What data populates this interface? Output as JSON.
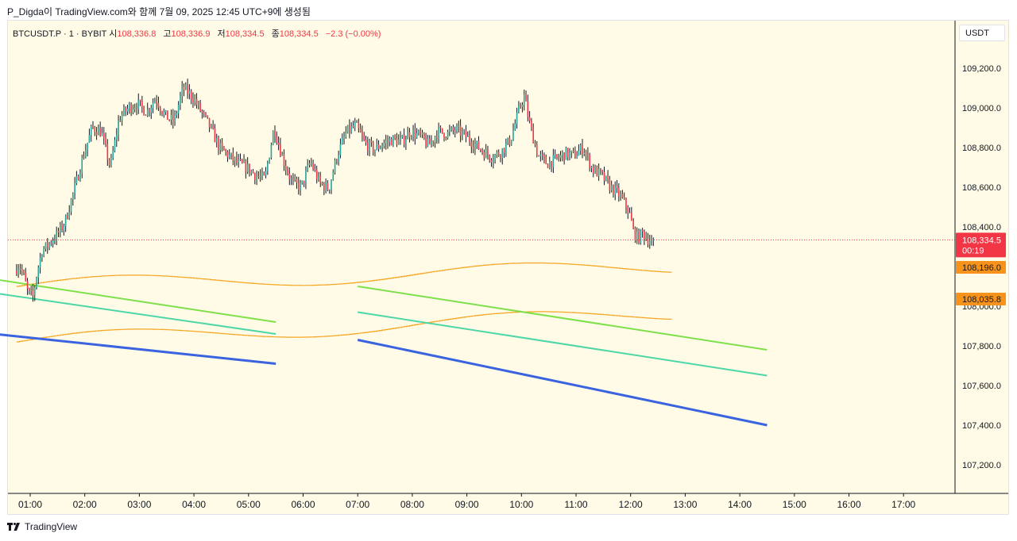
{
  "header": {
    "publish_info": "P_Digda이 TradingView.com와 함께 7월 09, 2025 12:45 UTC+9에 생성됨"
  },
  "symbol_bar": {
    "symbol": "BTCUSDT.P · 1 · BYBIT",
    "open_label": "시",
    "open_value": "108,336.8",
    "high_label": "고",
    "high_value": "108,336.9",
    "low_label": "저",
    "low_value": "108,334.5",
    "close_label": "종",
    "close_value": "108,334.5",
    "change": "−2.3 (−0.00%)"
  },
  "price_axis": {
    "currency": "USDT",
    "ticks": [
      "109,200.0",
      "109,000.0",
      "108,800.0",
      "108,600.0",
      "108,400.0",
      "108,000.0",
      "107,800.0",
      "107,600.0",
      "107,400.0",
      "107,200.0"
    ],
    "tick_values": [
      109200,
      109000,
      108800,
      108600,
      108400,
      108000,
      107800,
      107600,
      107400,
      107200
    ],
    "last_price_tag": "108,334.5",
    "countdown": "00:19",
    "upper_band_tag": "108,196.0",
    "lower_band_tag": "108,035.8"
  },
  "time_axis": {
    "labels": [
      "01:00",
      "02:00",
      "03:00",
      "04:00",
      "05:00",
      "06:00",
      "07:00",
      "08:00",
      "09:00",
      "10:00",
      "11:00",
      "12:00",
      "13:00",
      "14:00",
      "15:00",
      "16:00",
      "17:00"
    ]
  },
  "footer": {
    "brand": "TradingView"
  },
  "colors": {
    "background": "#fffbe6",
    "up": "#26a69a",
    "down": "#f23645",
    "wick": "#131722",
    "band": "#f5a623",
    "green_line": "#7ee04a",
    "teal_line": "#4dd6a6",
    "blue_line": "#3a63e0",
    "last_price": "#f23645",
    "band_tag": "#f7931a"
  },
  "chart_data": {
    "type": "candlestick",
    "symbol": "BTCUSDT.P",
    "interval": "1",
    "exchange": "BYBIT",
    "ylim": [
      107100,
      109300
    ],
    "price_path": [
      [
        "00:45",
        108180
      ],
      [
        "00:50",
        108210
      ],
      [
        "00:55",
        108150
      ],
      [
        "01:00",
        108060
      ],
      [
        "01:05",
        108050
      ],
      [
        "01:10",
        108180
      ],
      [
        "01:15",
        108280
      ],
      [
        "01:20",
        108300
      ],
      [
        "01:25",
        108330
      ],
      [
        "01:30",
        108350
      ],
      [
        "01:40",
        108420
      ],
      [
        "01:50",
        108580
      ],
      [
        "02:00",
        108750
      ],
      [
        "02:10",
        108900
      ],
      [
        "02:20",
        108880
      ],
      [
        "02:30",
        108700
      ],
      [
        "02:40",
        108950
      ],
      [
        "02:50",
        109000
      ],
      [
        "03:00",
        109020
      ],
      [
        "03:10",
        108980
      ],
      [
        "03:20",
        109050
      ],
      [
        "03:30",
        108960
      ],
      [
        "03:40",
        108930
      ],
      [
        "03:50",
        109100
      ],
      [
        "04:00",
        109060
      ],
      [
        "04:10",
        108980
      ],
      [
        "04:20",
        108900
      ],
      [
        "04:30",
        108800
      ],
      [
        "04:40",
        108760
      ],
      [
        "04:50",
        108720
      ],
      [
        "05:00",
        108700
      ],
      [
        "05:10",
        108660
      ],
      [
        "05:20",
        108640
      ],
      [
        "05:30",
        108900
      ],
      [
        "05:40",
        108740
      ],
      [
        "05:50",
        108620
      ],
      [
        "06:00",
        108600
      ],
      [
        "06:10",
        108730
      ],
      [
        "06:20",
        108620
      ],
      [
        "06:30",
        108590
      ],
      [
        "06:40",
        108770
      ],
      [
        "06:50",
        108880
      ],
      [
        "07:00",
        108910
      ],
      [
        "07:10",
        108820
      ],
      [
        "07:20",
        108790
      ],
      [
        "07:30",
        108820
      ],
      [
        "07:40",
        108840
      ],
      [
        "07:50",
        108830
      ],
      [
        "08:00",
        108880
      ],
      [
        "08:10",
        108860
      ],
      [
        "08:20",
        108810
      ],
      [
        "08:30",
        108880
      ],
      [
        "08:40",
        108870
      ],
      [
        "08:50",
        108890
      ],
      [
        "09:00",
        108860
      ],
      [
        "09:10",
        108820
      ],
      [
        "09:20",
        108780
      ],
      [
        "09:30",
        108750
      ],
      [
        "09:40",
        108780
      ],
      [
        "09:50",
        108840
      ],
      [
        "10:00",
        109000
      ],
      [
        "10:05",
        109060
      ],
      [
        "10:10",
        108940
      ],
      [
        "10:20",
        108760
      ],
      [
        "10:30",
        108720
      ],
      [
        "10:40",
        108740
      ],
      [
        "10:50",
        108770
      ],
      [
        "11:00",
        108760
      ],
      [
        "11:10",
        108800
      ],
      [
        "11:20",
        108690
      ],
      [
        "11:30",
        108660
      ],
      [
        "11:40",
        108600
      ],
      [
        "11:50",
        108560
      ],
      [
        "12:00",
        108480
      ],
      [
        "12:05",
        108380
      ],
      [
        "12:10",
        108340
      ],
      [
        "12:15",
        108370
      ],
      [
        "12:20",
        108340
      ],
      [
        "12:25",
        108334.5
      ]
    ],
    "indicators": {
      "upper_band_last": 108196.0,
      "lower_band_last": 108035.8,
      "trend_lines": {
        "green": [
          [
            "00:00",
            108150
          ],
          [
            "05:30",
            107920
          ],
          [
            "07:00",
            108100
          ],
          [
            "14:30",
            107780
          ]
        ],
        "teal": [
          [
            "00:00",
            108080
          ],
          [
            "05:30",
            107860
          ],
          [
            "07:00",
            107970
          ],
          [
            "14:30",
            107650
          ]
        ],
        "blue": [
          [
            "00:00",
            107870
          ],
          [
            "05:30",
            107710
          ],
          [
            "07:00",
            107830
          ],
          [
            "14:30",
            107400
          ]
        ]
      }
    },
    "xlabel": "",
    "ylabel": "",
    "grid": false
  }
}
